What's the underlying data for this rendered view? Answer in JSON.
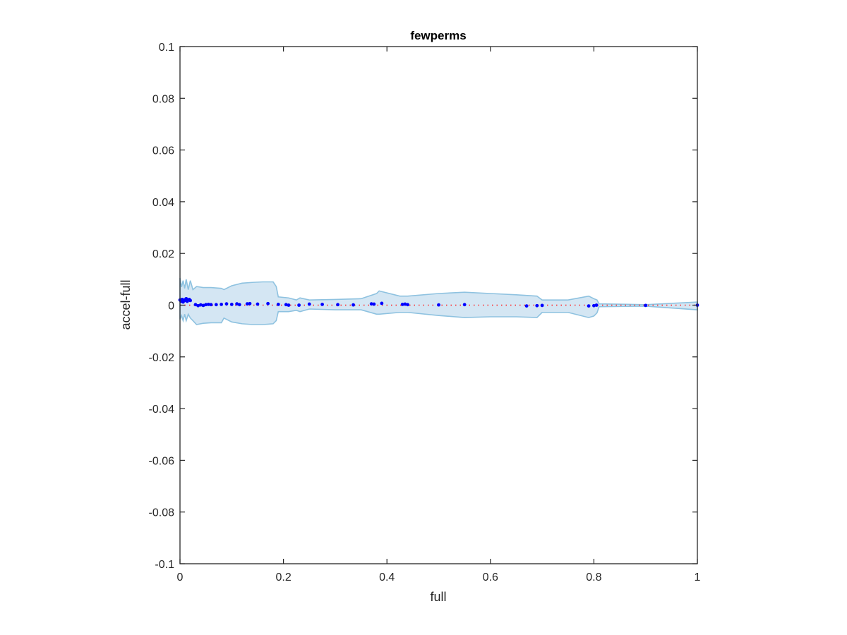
{
  "chart_data": {
    "type": "scatter",
    "title": "fewperms",
    "xlabel": "full",
    "ylabel": "accel-full",
    "xlim": [
      0,
      1
    ],
    "ylim": [
      -0.1,
      0.1
    ],
    "x_ticks": [
      "0",
      "0.2",
      "0.4",
      "0.6",
      "0.8",
      "1"
    ],
    "x_tick_values": [
      0,
      0.2,
      0.4,
      0.6,
      0.8,
      1
    ],
    "y_ticks": [
      "0.1",
      "0.08",
      "0.06",
      "0.04",
      "0.02",
      "0",
      "-0.02",
      "-0.04",
      "-0.06",
      "-0.08",
      "-0.1"
    ],
    "y_tick_values": [
      0.1,
      0.08,
      0.06,
      0.04,
      0.02,
      0,
      -0.02,
      -0.04,
      -0.06,
      -0.08,
      -0.1
    ],
    "grid": false,
    "colors": {
      "points": "#0000ff",
      "band_fill": "#d4e6f3",
      "band_edge": "#8ec2e0",
      "reference_line": "#ff2020",
      "axes": "#262626"
    },
    "reference_line": {
      "y": 0,
      "style": "dotted"
    },
    "band_upper": [
      [
        0,
        0.0105
      ],
      [
        0.003,
        0.007
      ],
      [
        0.006,
        0.0095
      ],
      [
        0.009,
        0.0065
      ],
      [
        0.012,
        0.01
      ],
      [
        0.016,
        0.006
      ],
      [
        0.02,
        0.0095
      ],
      [
        0.025,
        0.006
      ],
      [
        0.032,
        0.0072
      ],
      [
        0.045,
        0.0068
      ],
      [
        0.06,
        0.0068
      ],
      [
        0.08,
        0.0065
      ],
      [
        0.085,
        0.006
      ],
      [
        0.1,
        0.0075
      ],
      [
        0.12,
        0.0085
      ],
      [
        0.14,
        0.0088
      ],
      [
        0.16,
        0.009
      ],
      [
        0.18,
        0.009
      ],
      [
        0.186,
        0.0072
      ],
      [
        0.19,
        0.0032
      ],
      [
        0.21,
        0.0028
      ],
      [
        0.225,
        0.002
      ],
      [
        0.232,
        0.0028
      ],
      [
        0.25,
        0.002
      ],
      [
        0.3,
        0.0022
      ],
      [
        0.35,
        0.0025
      ],
      [
        0.38,
        0.0045
      ],
      [
        0.385,
        0.0055
      ],
      [
        0.425,
        0.0035
      ],
      [
        0.44,
        0.0035
      ],
      [
        0.5,
        0.0045
      ],
      [
        0.55,
        0.005
      ],
      [
        0.6,
        0.0045
      ],
      [
        0.65,
        0.004
      ],
      [
        0.69,
        0.0035
      ],
      [
        0.7,
        0.002
      ],
      [
        0.75,
        0.002
      ],
      [
        0.79,
        0.0035
      ],
      [
        0.8,
        0.0025
      ],
      [
        0.806,
        0.002
      ],
      [
        0.81,
        0.0005
      ],
      [
        0.9,
        0.0002
      ],
      [
        1,
        0.0012
      ]
    ],
    "band_lower": [
      [
        0,
        -0.0055
      ],
      [
        0.003,
        -0.004
      ],
      [
        0.006,
        -0.006
      ],
      [
        0.009,
        -0.0035
      ],
      [
        0.012,
        -0.006
      ],
      [
        0.016,
        -0.0035
      ],
      [
        0.02,
        -0.005
      ],
      [
        0.025,
        -0.006
      ],
      [
        0.032,
        -0.0075
      ],
      [
        0.045,
        -0.007
      ],
      [
        0.06,
        -0.0068
      ],
      [
        0.08,
        -0.0068
      ],
      [
        0.085,
        -0.005
      ],
      [
        0.1,
        -0.0065
      ],
      [
        0.12,
        -0.0072
      ],
      [
        0.14,
        -0.0075
      ],
      [
        0.16,
        -0.0075
      ],
      [
        0.18,
        -0.0072
      ],
      [
        0.186,
        -0.006
      ],
      [
        0.19,
        -0.0025
      ],
      [
        0.21,
        -0.0025
      ],
      [
        0.225,
        -0.002
      ],
      [
        0.232,
        -0.0025
      ],
      [
        0.25,
        -0.0015
      ],
      [
        0.3,
        -0.0018
      ],
      [
        0.35,
        -0.0018
      ],
      [
        0.38,
        -0.0035
      ],
      [
        0.385,
        -0.0035
      ],
      [
        0.425,
        -0.0028
      ],
      [
        0.44,
        -0.0028
      ],
      [
        0.5,
        -0.004
      ],
      [
        0.55,
        -0.0048
      ],
      [
        0.6,
        -0.0045
      ],
      [
        0.65,
        -0.0045
      ],
      [
        0.69,
        -0.0048
      ],
      [
        0.7,
        -0.0028
      ],
      [
        0.75,
        -0.0028
      ],
      [
        0.79,
        -0.0048
      ],
      [
        0.8,
        -0.0042
      ],
      [
        0.806,
        -0.003
      ],
      [
        0.81,
        -0.0006
      ],
      [
        0.9,
        -0.0004
      ],
      [
        1,
        -0.0018
      ]
    ],
    "points": {
      "x": [
        0,
        0.002,
        0.004,
        0.006,
        0.008,
        0.01,
        0.012,
        0.014,
        0.016,
        0.018,
        0.02,
        0.03,
        0.035,
        0.04,
        0.045,
        0.05,
        0.055,
        0.06,
        0.07,
        0.08,
        0.09,
        0.1,
        0.11,
        0.115,
        0.13,
        0.135,
        0.15,
        0.17,
        0.19,
        0.205,
        0.21,
        0.23,
        0.25,
        0.275,
        0.305,
        0.335,
        0.37,
        0.375,
        0.39,
        0.43,
        0.435,
        0.44,
        0.5,
        0.55,
        0.67,
        0.69,
        0.7,
        0.79,
        0.8,
        0.805,
        0.9,
        1
      ],
      "y": [
        0.002,
        0.0015,
        0.0022,
        0.0012,
        0.002,
        0.0018,
        0.0025,
        0.0015,
        0.002,
        0.0022,
        0.0018,
        0.0002,
        -0.0002,
        0.0001,
        -0.0001,
        0.0002,
        0.0003,
        0.0002,
        0.0002,
        0.0003,
        0.0005,
        0.0003,
        0.0005,
        0.0002,
        0.0005,
        0.0006,
        0.0004,
        0.0006,
        0.0003,
        0.0002,
        0,
        0,
        0.0004,
        0.0003,
        0.0002,
        0.0001,
        0.0005,
        0.0004,
        0.0007,
        0.0003,
        0.0004,
        0.0002,
        0.0001,
        0.0002,
        -0.0003,
        -0.0002,
        -0.0001,
        -0.0003,
        -0.0002,
        0,
        -0.0001,
        0
      ]
    }
  }
}
